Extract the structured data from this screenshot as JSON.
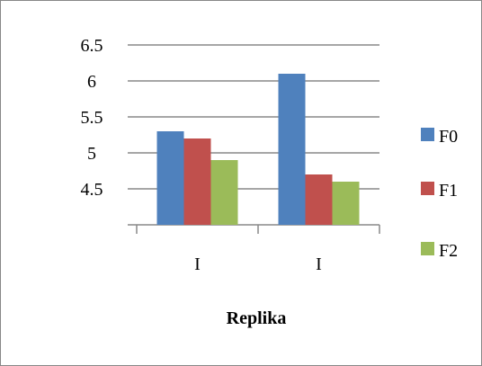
{
  "chart_data": {
    "type": "bar",
    "title": "",
    "xlabel": "Replika",
    "ylabel": "",
    "categories": [
      "I",
      "I"
    ],
    "series": [
      {
        "name": "F0",
        "color": "#4F81BD",
        "values": [
          5.3,
          6.1
        ]
      },
      {
        "name": "F1",
        "color": "#C0504D",
        "values": [
          5.2,
          4.7
        ]
      },
      {
        "name": "F2",
        "color": "#9BBB59",
        "values": [
          4.9,
          4.6
        ]
      }
    ],
    "y_ticks": [
      "6.5",
      "6",
      "5.5",
      "5",
      "4.5"
    ],
    "y_tick_values": [
      6.5,
      6,
      5.5,
      5,
      4.5
    ],
    "ylim": [
      4,
      6.5
    ],
    "grid": true,
    "legend_position": "right",
    "gridline_color": "#898989"
  }
}
